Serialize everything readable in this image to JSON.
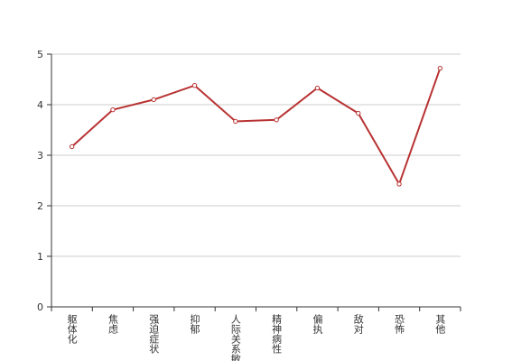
{
  "chart_data": {
    "type": "line",
    "categories": [
      "躯体化",
      "焦虑",
      "强迫症状",
      "抑郁",
      "人际关系敏感",
      "精神病性",
      "偏执",
      "敌对",
      "恐怖",
      "其他"
    ],
    "series": [
      {
        "color": "#b83232",
        "values": [
          3.17,
          3.9,
          4.1,
          4.38,
          3.67,
          3.7,
          4.33,
          3.83,
          2.43,
          4.72
        ]
      }
    ],
    "ylim": [
      0,
      5
    ],
    "yticks": [
      0,
      1,
      2,
      3,
      4,
      5
    ],
    "grid": true
  }
}
